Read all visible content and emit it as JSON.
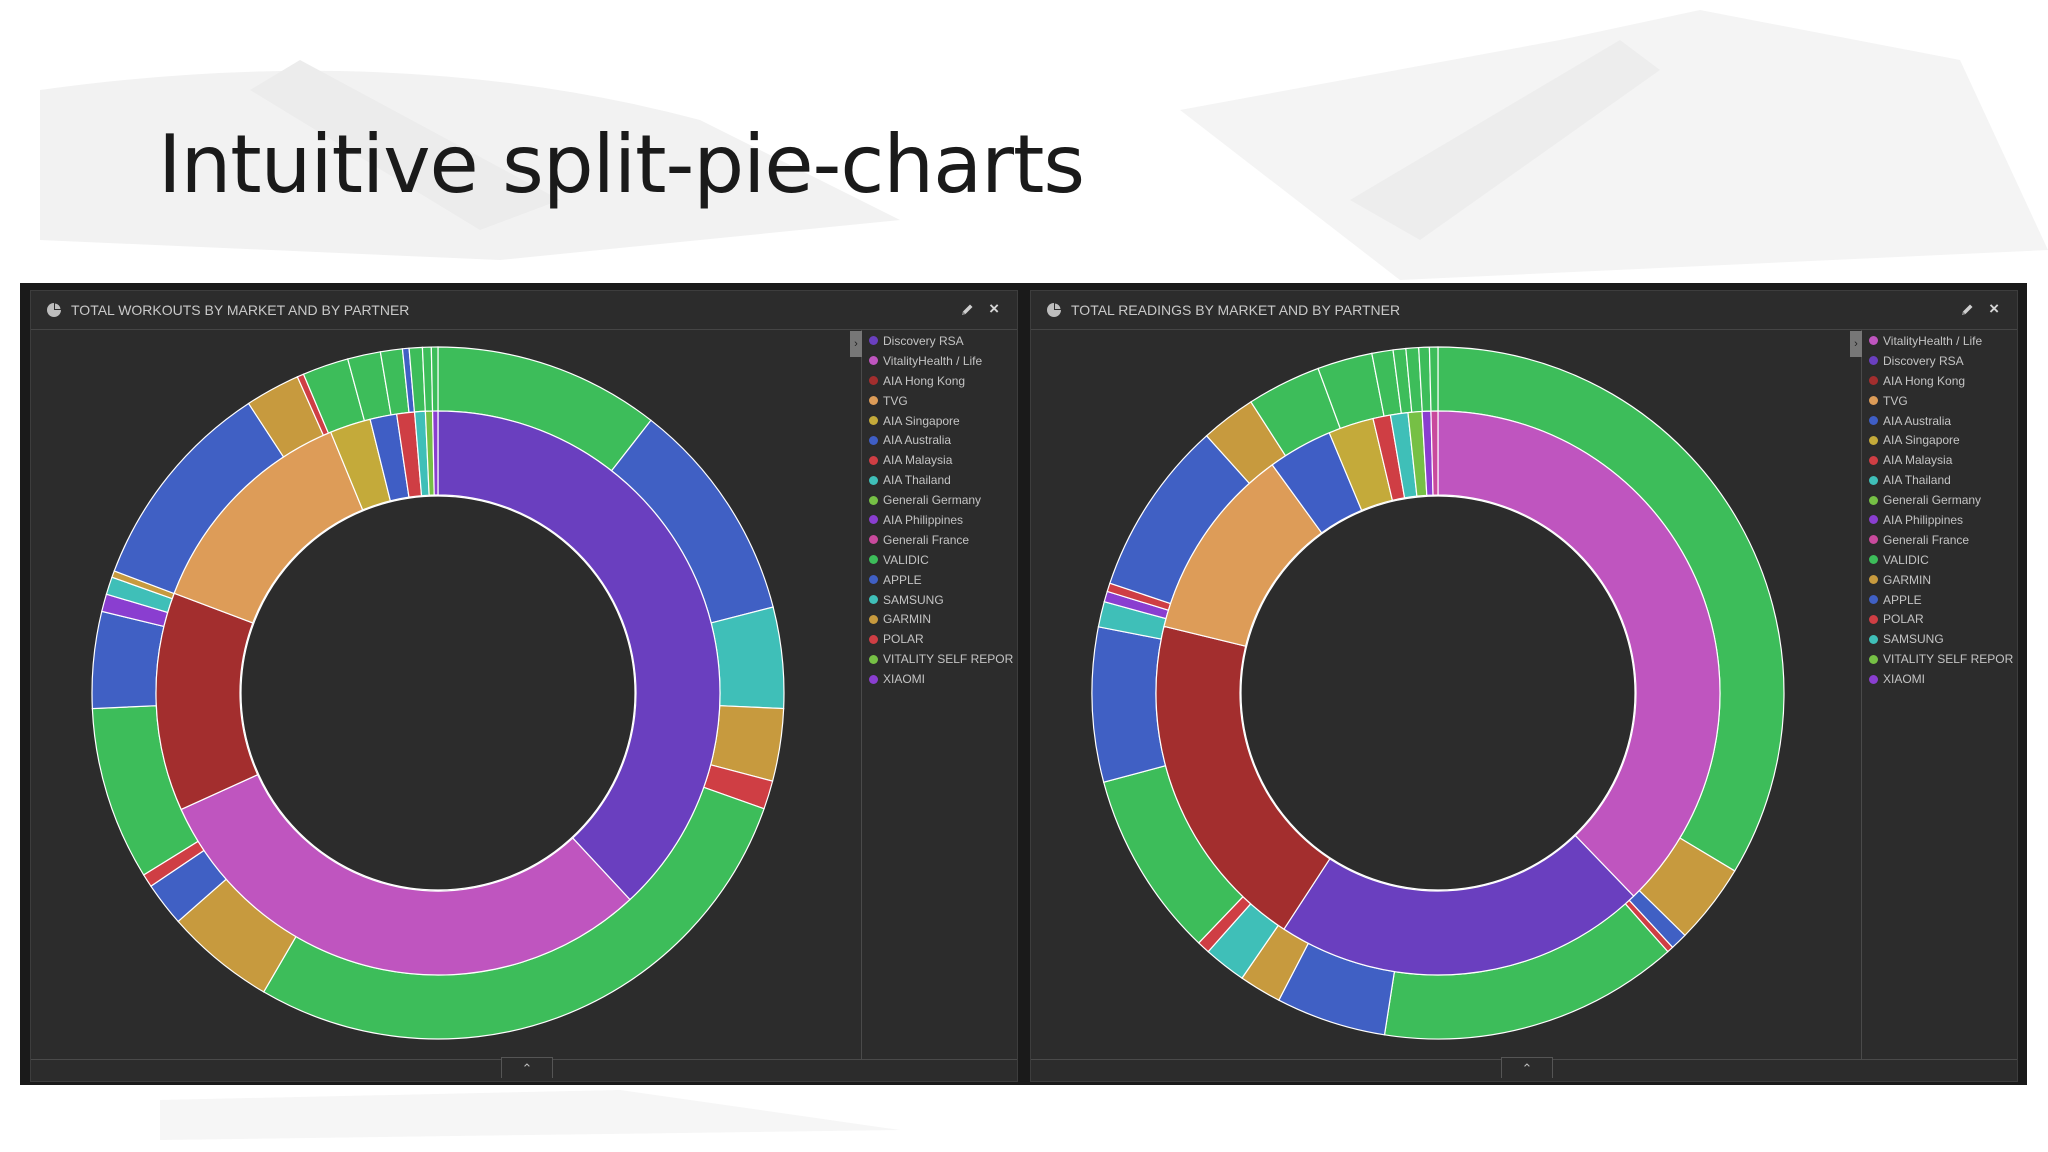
{
  "slide": {
    "title": "Intuitive split-pie-charts"
  },
  "colors": {
    "background": "#ffffff",
    "panel_bg": "#2c2c2c",
    "frame": "#1a1a1a",
    "header_text": "#c9c9c9"
  },
  "panels": [
    {
      "title": "TOTAL WORKOUTS BY MARKET AND BY PARTNER",
      "icons": {
        "chart": "pie-chart-icon",
        "edit": "pencil-icon",
        "close": "close-icon"
      },
      "close_glyph": "×",
      "legend_toggle_glyph": "›",
      "footer_toggle_glyph": "⌃",
      "legend": [
        {
          "label": "Discovery RSA",
          "color": "#6a3fbf"
        },
        {
          "label": "VitalityHealth / Life",
          "color": "#bf55bf"
        },
        {
          "label": "AIA Hong Kong",
          "color": "#a32e2e"
        },
        {
          "label": "TVG",
          "color": "#dd9c58"
        },
        {
          "label": "AIA Singapore",
          "color": "#c4aa3a"
        },
        {
          "label": "AIA Australia",
          "color": "#3f5ec5"
        },
        {
          "label": "AIA Malaysia",
          "color": "#cf3e44"
        },
        {
          "label": "AIA Thailand",
          "color": "#3fbfb8"
        },
        {
          "label": "Generali Germany",
          "color": "#76c045"
        },
        {
          "label": "AIA Philippines",
          "color": "#8a3ed0"
        },
        {
          "label": "Generali France",
          "color": "#c94a9d"
        },
        {
          "label": "VALIDIC",
          "color": "#3dbd5a"
        },
        {
          "label": "APPLE",
          "color": "#4060c4"
        },
        {
          "label": "SAMSUNG",
          "color": "#3fbfb8"
        },
        {
          "label": "GARMIN",
          "color": "#c79a3e"
        },
        {
          "label": "POLAR",
          "color": "#cf3e44"
        },
        {
          "label": "VITALITY SELF REPOR...",
          "color": "#76c045"
        },
        {
          "label": "XIAOMI",
          "color": "#8a3ed0"
        }
      ]
    },
    {
      "title": "TOTAL READINGS BY MARKET AND BY PARTNER",
      "icons": {
        "chart": "pie-chart-icon",
        "edit": "pencil-icon",
        "close": "close-icon"
      },
      "close_glyph": "×",
      "legend_toggle_glyph": "›",
      "footer_toggle_glyph": "⌃",
      "legend": [
        {
          "label": "VitalityHealth / Life",
          "color": "#bf55bf"
        },
        {
          "label": "Discovery RSA",
          "color": "#6a3fbf"
        },
        {
          "label": "AIA Hong Kong",
          "color": "#a32e2e"
        },
        {
          "label": "TVG",
          "color": "#dd9c58"
        },
        {
          "label": "AIA Australia",
          "color": "#3f5ec5"
        },
        {
          "label": "AIA Singapore",
          "color": "#c4aa3a"
        },
        {
          "label": "AIA Malaysia",
          "color": "#cf3e44"
        },
        {
          "label": "AIA Thailand",
          "color": "#3fbfb8"
        },
        {
          "label": "Generali Germany",
          "color": "#76c045"
        },
        {
          "label": "AIA Philippines",
          "color": "#8a3ed0"
        },
        {
          "label": "Generali France",
          "color": "#c94a9d"
        },
        {
          "label": "VALIDIC",
          "color": "#3dbd5a"
        },
        {
          "label": "GARMIN",
          "color": "#c79a3e"
        },
        {
          "label": "APPLE",
          "color": "#4060c4"
        },
        {
          "label": "POLAR",
          "color": "#cf3e44"
        },
        {
          "label": "SAMSUNG",
          "color": "#3fbfb8"
        },
        {
          "label": "VITALITY SELF REPOR...",
          "color": "#76c045"
        },
        {
          "label": "XIAOMI",
          "color": "#8a3ed0"
        }
      ]
    }
  ],
  "chart_data": [
    {
      "type": "pie",
      "subtype": "split-donut",
      "title": "TOTAL WORKOUTS BY MARKET AND BY PARTNER",
      "inner_ring": [
        {
          "name": "Discovery RSA",
          "value": 37.4,
          "color": "#6a3fbf"
        },
        {
          "name": "VitalityHealth / Life",
          "value": 29.6,
          "color": "#bf55bf"
        },
        {
          "name": "AIA Hong Kong",
          "value": 12.3,
          "color": "#a32e2e"
        },
        {
          "name": "TVG",
          "value": 12.8,
          "color": "#dd9c58"
        },
        {
          "name": "AIA Singapore",
          "value": 2.3,
          "color": "#c4aa3a"
        },
        {
          "name": "AIA Australia",
          "value": 1.5,
          "color": "#3f5ec5"
        },
        {
          "name": "AIA Malaysia",
          "value": 1.0,
          "color": "#cf3e44"
        },
        {
          "name": "AIA Thailand",
          "value": 0.6,
          "color": "#3fbfb8"
        },
        {
          "name": "Generali Germany",
          "value": 0.4,
          "color": "#76c045"
        },
        {
          "name": "AIA Philippines",
          "value": 0.3,
          "color": "#8a3ed0"
        }
      ],
      "outer_ring": [
        {
          "name": "VALIDIC",
          "value": 10.3,
          "color": "#3dbd5a"
        },
        {
          "name": "APPLE",
          "value": 10.2,
          "color": "#4060c4"
        },
        {
          "name": "SAMSUNG",
          "value": 4.6,
          "color": "#3fbfb8"
        },
        {
          "name": "GARMIN",
          "value": 3.3,
          "color": "#c79a3e"
        },
        {
          "name": "POLAR",
          "value": 1.3,
          "color": "#cf3e44"
        },
        {
          "name": "VALIDIC",
          "value": 27.3,
          "color": "#3dbd5a"
        },
        {
          "name": "GARMIN",
          "value": 5.0,
          "color": "#c79a3e"
        },
        {
          "name": "APPLE",
          "value": 2.0,
          "color": "#4060c4"
        },
        {
          "name": "POLAR",
          "value": 0.6,
          "color": "#cf3e44"
        },
        {
          "name": "VALIDIC",
          "value": 7.9,
          "color": "#3dbd5a"
        },
        {
          "name": "APPLE",
          "value": 4.4,
          "color": "#4060c4"
        },
        {
          "name": "XIAOMI",
          "value": 0.8,
          "color": "#8a3ed0"
        },
        {
          "name": "SAMSUNG",
          "value": 0.8,
          "color": "#3fbfb8"
        },
        {
          "name": "GARMIN",
          "value": 0.3,
          "color": "#c79a3e"
        },
        {
          "name": "APPLE",
          "value": 9.8,
          "color": "#4060c4"
        },
        {
          "name": "GARMIN",
          "value": 2.5,
          "color": "#c79a3e"
        },
        {
          "name": "POLAR",
          "value": 0.3,
          "color": "#cf3e44"
        },
        {
          "name": "VALIDIC",
          "value": 2.1,
          "color": "#3dbd5a"
        },
        {
          "name": "VALIDIC",
          "value": 1.5,
          "color": "#3dbd5a"
        },
        {
          "name": "VALIDIC",
          "value": 1.0,
          "color": "#3dbd5a"
        },
        {
          "name": "APPLE",
          "value": 0.3,
          "color": "#4060c4"
        },
        {
          "name": "VALIDIC",
          "value": 0.6,
          "color": "#3dbd5a"
        },
        {
          "name": "VALIDIC",
          "value": 0.4,
          "color": "#3dbd5a"
        },
        {
          "name": "VALIDIC",
          "value": 0.3,
          "color": "#3dbd5a"
        }
      ],
      "legend_placement": "right"
    },
    {
      "type": "pie",
      "subtype": "split-donut",
      "title": "TOTAL READINGS BY MARKET AND BY PARTNER",
      "inner_ring": [
        {
          "name": "VitalityHealth / Life",
          "value": 37.8,
          "color": "#bf55bf"
        },
        {
          "name": "Discovery RSA",
          "value": 21.4,
          "color": "#6a3fbf"
        },
        {
          "name": "AIA Hong Kong",
          "value": 19.6,
          "color": "#a32e2e"
        },
        {
          "name": "TVG",
          "value": 11.2,
          "color": "#dd9c58"
        },
        {
          "name": "AIA Australia",
          "value": 3.7,
          "color": "#3f5ec5"
        },
        {
          "name": "AIA Singapore",
          "value": 2.6,
          "color": "#c4aa3a"
        },
        {
          "name": "AIA Malaysia",
          "value": 1.0,
          "color": "#cf3e44"
        },
        {
          "name": "AIA Thailand",
          "value": 1.0,
          "color": "#3fbfb8"
        },
        {
          "name": "Generali Germany",
          "value": 0.8,
          "color": "#76c045"
        },
        {
          "name": "AIA Philippines",
          "value": 0.5,
          "color": "#8a3ed0"
        },
        {
          "name": "Generali France",
          "value": 0.4,
          "color": "#c94a9d"
        }
      ],
      "outer_ring": [
        {
          "name": "VALIDIC",
          "value": 34.0,
          "color": "#3dbd5a"
        },
        {
          "name": "GARMIN",
          "value": 3.8,
          "color": "#c79a3e"
        },
        {
          "name": "APPLE",
          "value": 0.8,
          "color": "#4060c4"
        },
        {
          "name": "POLAR",
          "value": 0.3,
          "color": "#cf3e44"
        },
        {
          "name": "VALIDIC",
          "value": 14.2,
          "color": "#3dbd5a"
        },
        {
          "name": "APPLE",
          "value": 5.2,
          "color": "#4060c4"
        },
        {
          "name": "GARMIN",
          "value": 2.0,
          "color": "#c79a3e"
        },
        {
          "name": "SAMSUNG",
          "value": 2.0,
          "color": "#3fbfb8"
        },
        {
          "name": "POLAR",
          "value": 0.6,
          "color": "#cf3e44"
        },
        {
          "name": "VALIDIC",
          "value": 8.8,
          "color": "#3dbd5a"
        },
        {
          "name": "APPLE",
          "value": 7.3,
          "color": "#4060c4"
        },
        {
          "name": "SAMSUNG",
          "value": 1.2,
          "color": "#3fbfb8"
        },
        {
          "name": "XIAOMI",
          "value": 0.5,
          "color": "#8a3ed0"
        },
        {
          "name": "POLAR",
          "value": 0.4,
          "color": "#cf3e44"
        },
        {
          "name": "APPLE",
          "value": 8.3,
          "color": "#4060c4"
        },
        {
          "name": "GARMIN",
          "value": 2.6,
          "color": "#c79a3e"
        },
        {
          "name": "VALIDIC",
          "value": 3.5,
          "color": "#3dbd5a"
        },
        {
          "name": "VALIDIC",
          "value": 2.6,
          "color": "#3dbd5a"
        },
        {
          "name": "VALIDIC",
          "value": 1.0,
          "color": "#3dbd5a"
        },
        {
          "name": "VALIDIC",
          "value": 0.6,
          "color": "#3dbd5a"
        },
        {
          "name": "VALIDIC",
          "value": 0.6,
          "color": "#3dbd5a"
        },
        {
          "name": "VALIDIC",
          "value": 0.5,
          "color": "#3dbd5a"
        },
        {
          "name": "VALIDIC",
          "value": 0.4,
          "color": "#3dbd5a"
        }
      ],
      "legend_placement": "right"
    }
  ]
}
